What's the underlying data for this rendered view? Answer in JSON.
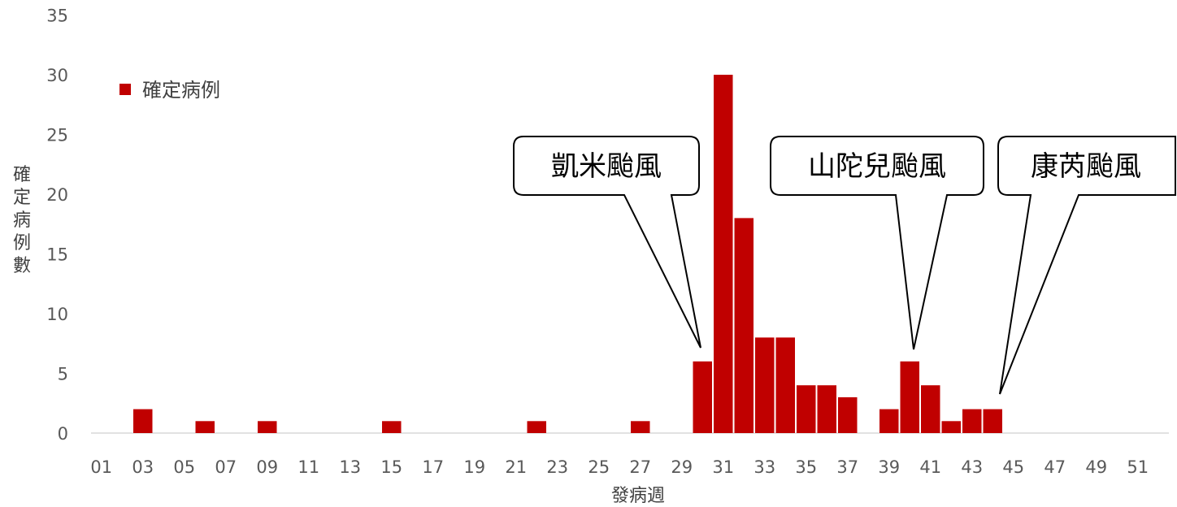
{
  "chart_data": {
    "type": "bar",
    "xlabel": "發病週",
    "ylabel": "確定病例數",
    "ylim": [
      0,
      35
    ],
    "yticks": [
      0,
      5,
      10,
      15,
      20,
      25,
      30,
      35
    ],
    "grid": false,
    "legend": {
      "position": "top-left",
      "entries": [
        "確定病例"
      ]
    },
    "categories": [
      "01",
      "02",
      "03",
      "04",
      "05",
      "06",
      "07",
      "08",
      "09",
      "10",
      "11",
      "12",
      "13",
      "14",
      "15",
      "16",
      "17",
      "18",
      "19",
      "20",
      "21",
      "22",
      "23",
      "24",
      "25",
      "26",
      "27",
      "28",
      "29",
      "30",
      "31",
      "32",
      "33",
      "34",
      "35",
      "36",
      "37",
      "38",
      "39",
      "40",
      "41",
      "42",
      "43",
      "44",
      "45",
      "46",
      "47",
      "48",
      "49",
      "50",
      "51",
      "52"
    ],
    "tick_labels": [
      "01",
      "03",
      "05",
      "07",
      "09",
      "11",
      "13",
      "15",
      "17",
      "19",
      "21",
      "23",
      "25",
      "27",
      "29",
      "31",
      "33",
      "35",
      "37",
      "39",
      "41",
      "43",
      "45",
      "47",
      "49",
      "51"
    ],
    "series": [
      {
        "name": "確定病例",
        "color": "#c00000",
        "values": [
          0,
          0,
          2,
          0,
          0,
          1,
          0,
          0,
          1,
          0,
          0,
          0,
          0,
          0,
          1,
          0,
          0,
          0,
          0,
          0,
          0,
          1,
          0,
          0,
          0,
          0,
          1,
          0,
          0,
          6,
          30,
          18,
          8,
          8,
          4,
          4,
          3,
          0,
          2,
          6,
          4,
          1,
          2,
          2,
          0,
          0,
          0,
          0,
          0,
          0,
          0,
          0
        ]
      }
    ],
    "annotations": [
      {
        "text": "凱米颱風",
        "week": "30"
      },
      {
        "text": "山陀兒颱風",
        "week": "40"
      },
      {
        "text": "康芮颱風",
        "week": "44"
      }
    ]
  }
}
